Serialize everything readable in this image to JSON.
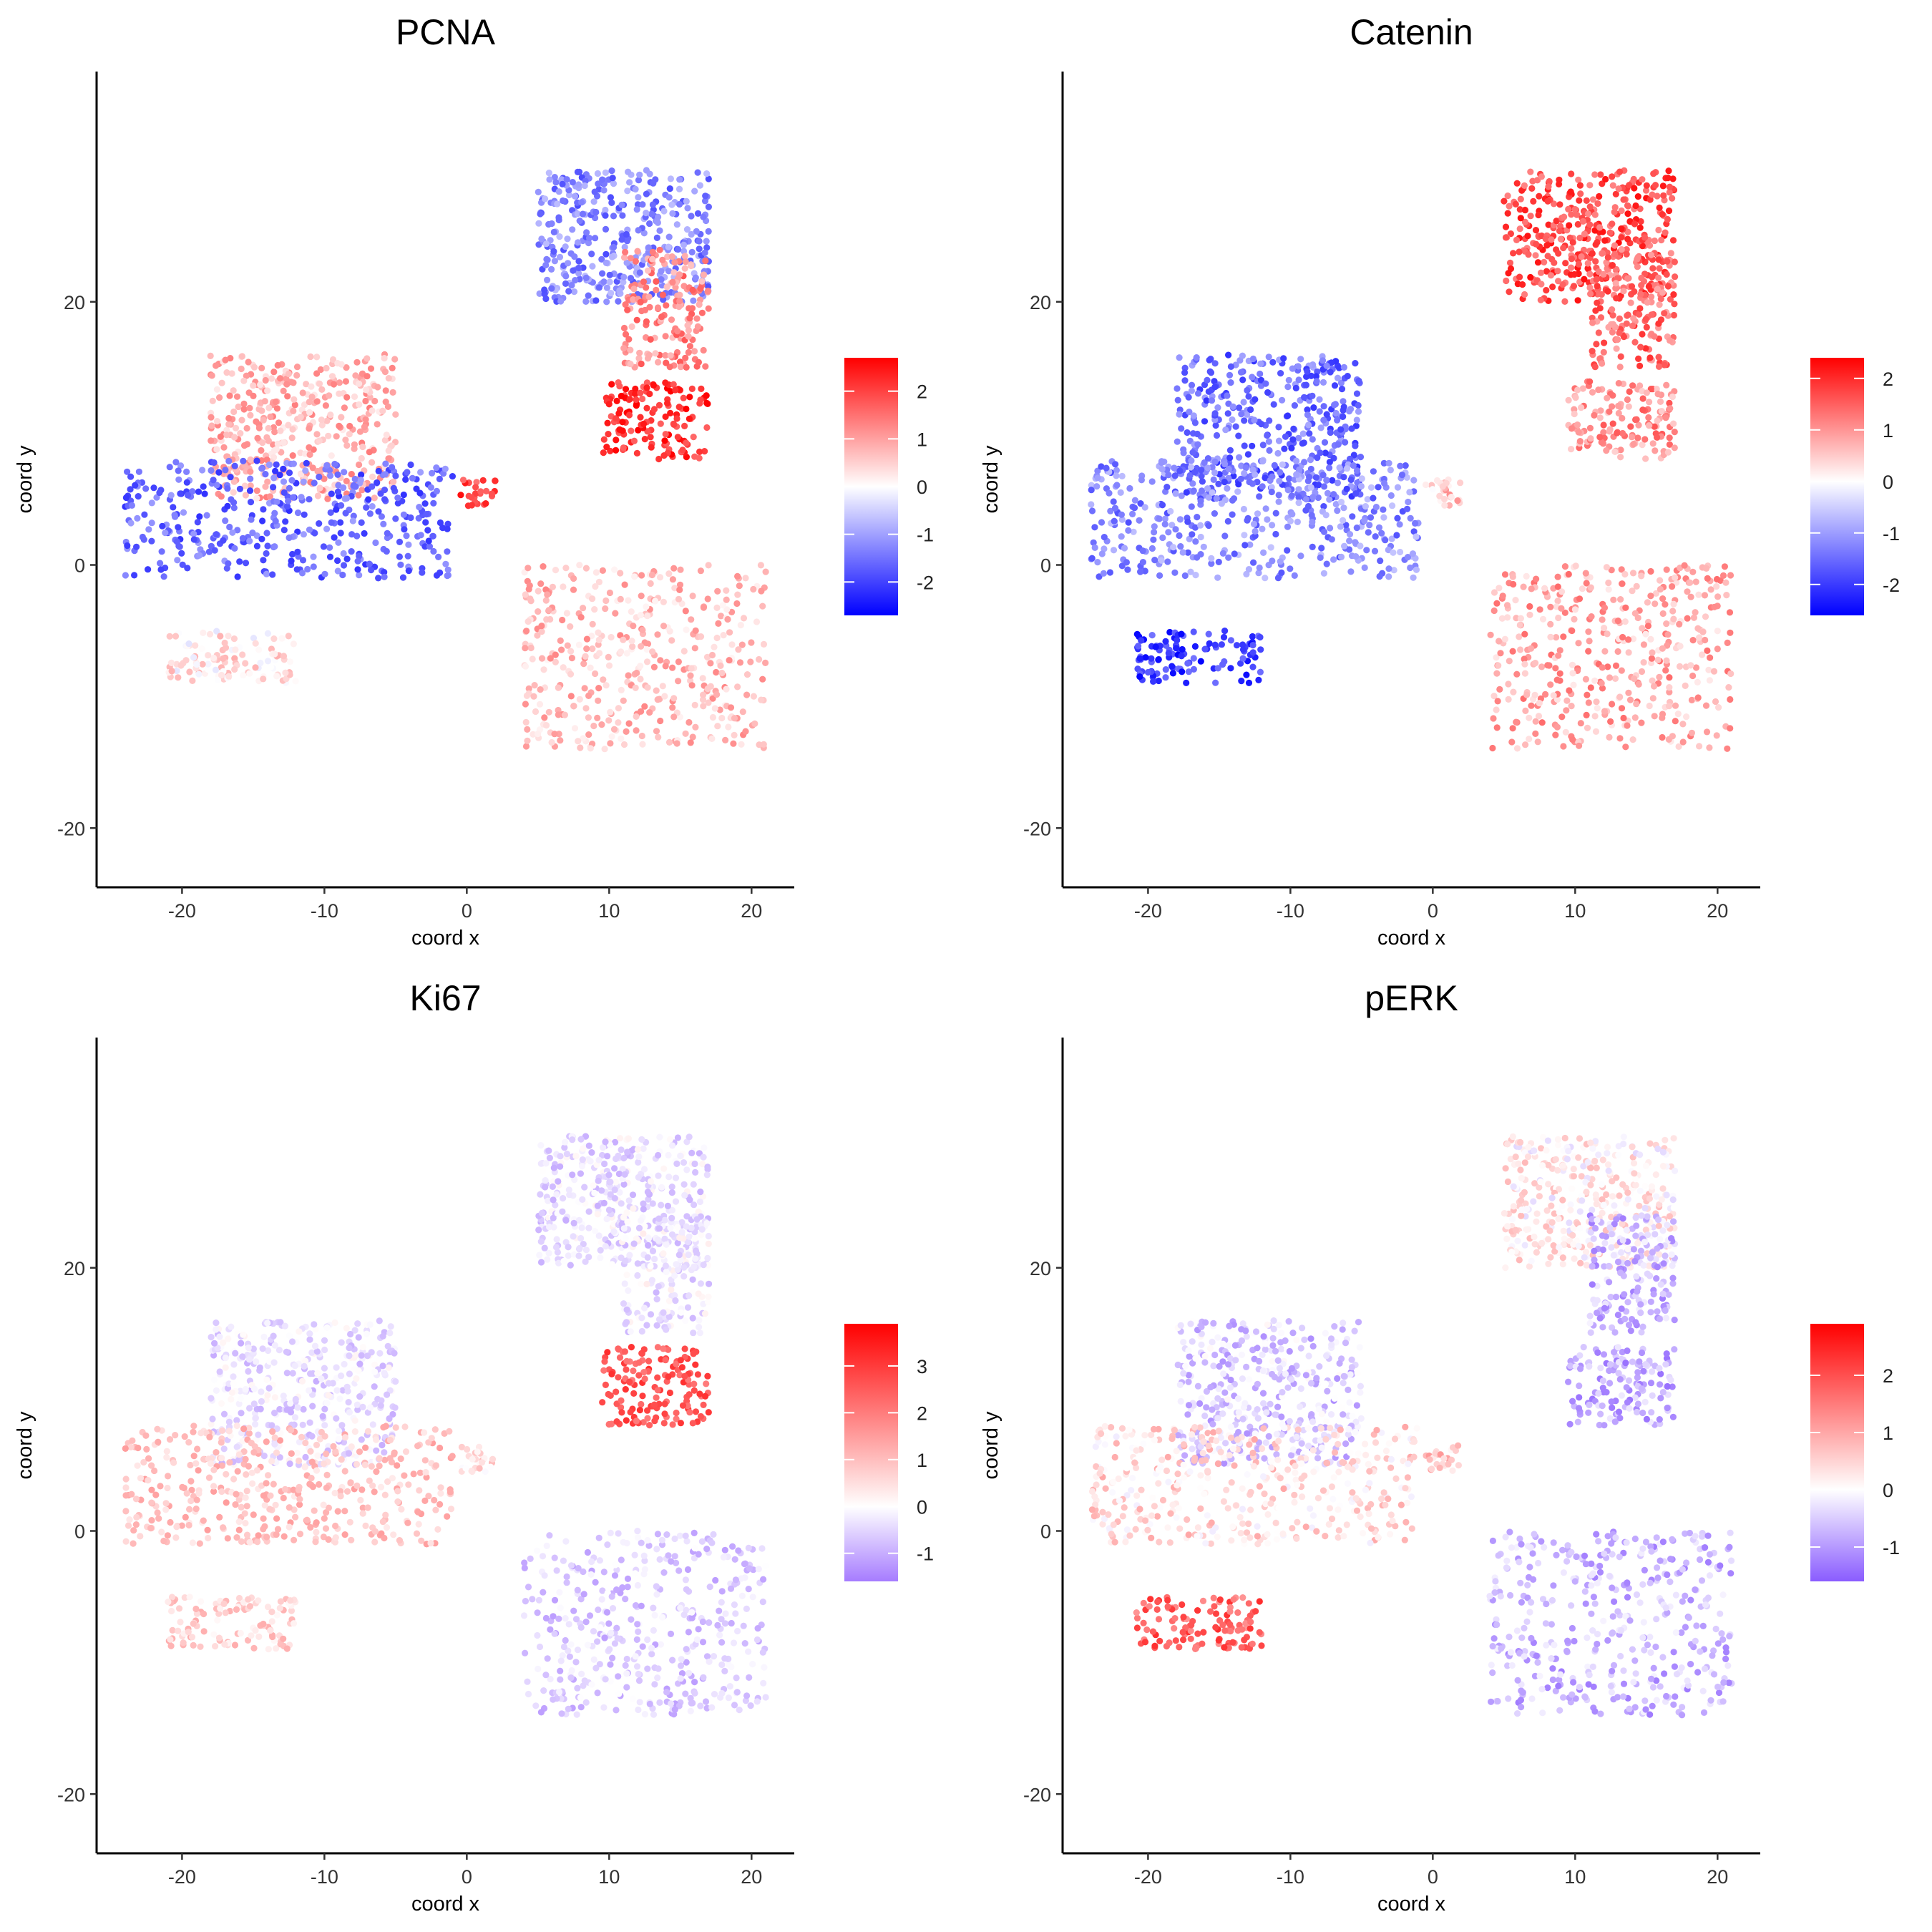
{
  "chart_data": [
    {
      "type": "scatter",
      "title": "PCNA",
      "xlabel": "coord x",
      "ylabel": "coord y",
      "xlim": [
        -26,
        23
      ],
      "ylim": [
        -24.5,
        37.5
      ],
      "xticks": [
        -20,
        -10,
        0,
        10,
        20
      ],
      "yticks": [
        -20,
        0,
        20
      ],
      "colorbar": {
        "min": -2.7,
        "max": 2.7,
        "ticks": [
          2,
          1,
          0,
          -1,
          -2
        ],
        "colors": [
          "#0000FF",
          "#FFFFFF",
          "#FF0000"
        ]
      },
      "grid": false,
      "legend": "right",
      "clusters": [
        {
          "region": "upper-right cluster, top lobe (purple-left / lavender)",
          "x_range": [
            5,
            17
          ],
          "y_range": [
            20,
            30
          ],
          "value": -1.3
        },
        {
          "region": "upper-right cluster, neck",
          "x_range": [
            11,
            17
          ],
          "y_range": [
            15,
            24
          ],
          "value": 1.2
        },
        {
          "region": "upper-right cluster, bottom lobe",
          "x_range": [
            9.5,
            17
          ],
          "y_range": [
            8,
            14
          ],
          "value": 2.2
        },
        {
          "region": "left cluster, upper part",
          "x_range": [
            -18,
            -5
          ],
          "y_range": [
            5,
            16
          ],
          "value": 0.8
        },
        {
          "region": "left cluster, lower part",
          "x_range": [
            -24,
            -1
          ],
          "y_range": [
            -1,
            8
          ],
          "value": -1.6
        },
        {
          "region": "small cluster near origin",
          "x_range": [
            -0.5,
            2
          ],
          "y_range": [
            4.5,
            6.5
          ],
          "value": 2.0
        },
        {
          "region": "lower-left curved arm",
          "x_range": [
            -21,
            -12
          ],
          "y_range": [
            -9,
            -5
          ],
          "value": 0.3
        },
        {
          "region": "lower-right sparse points",
          "x_range": [
            4,
            21
          ],
          "y_range": [
            -14,
            0
          ],
          "value": 0.7
        }
      ]
    },
    {
      "type": "scatter",
      "title": "Catenin",
      "xlabel": "coord x",
      "ylabel": "coord y",
      "xlim": [
        -26,
        23
      ],
      "ylim": [
        -24.5,
        37.5
      ],
      "xticks": [
        -20,
        -10,
        0,
        10,
        20
      ],
      "yticks": [
        -20,
        0,
        20
      ],
      "colorbar": {
        "min": -2.6,
        "max": 2.4,
        "ticks": [
          2,
          1,
          0,
          -1,
          -2
        ],
        "colors": [
          "#0000FF",
          "#FFFFFF",
          "#FF0000"
        ]
      },
      "grid": false,
      "legend": "right",
      "clusters": [
        {
          "region": "upper-right cluster, top lobe",
          "x_range": [
            5,
            17
          ],
          "y_range": [
            20,
            30
          ],
          "value": 1.7
        },
        {
          "region": "upper-right cluster, neck",
          "x_range": [
            11,
            17
          ],
          "y_range": [
            15,
            24
          ],
          "value": 1.4
        },
        {
          "region": "upper-right cluster, bottom lobe",
          "x_range": [
            9.5,
            17
          ],
          "y_range": [
            8,
            14
          ],
          "value": 1.0
        },
        {
          "region": "left cluster, upper part",
          "x_range": [
            -18,
            -5
          ],
          "y_range": [
            5,
            16
          ],
          "value": -1.5
        },
        {
          "region": "left cluster, lower part",
          "x_range": [
            -24,
            -1
          ],
          "y_range": [
            -1,
            8
          ],
          "value": -1.2
        },
        {
          "region": "small cluster near origin",
          "x_range": [
            -0.5,
            2
          ],
          "y_range": [
            4.5,
            6.5
          ],
          "value": 0.5
        },
        {
          "region": "lower-left curved arm",
          "x_range": [
            -21,
            -12
          ],
          "y_range": [
            -9,
            -5
          ],
          "value": -2.0
        },
        {
          "region": "lower-right sparse points",
          "x_range": [
            4,
            21
          ],
          "y_range": [
            -14,
            0
          ],
          "value": 0.8
        }
      ]
    },
    {
      "type": "scatter",
      "title": "Ki67",
      "xlabel": "coord x",
      "ylabel": "coord y",
      "xlim": [
        -26,
        23
      ],
      "ylim": [
        -24.5,
        37.5
      ],
      "xticks": [
        -20,
        -10,
        0,
        10,
        20
      ],
      "yticks": [
        -20,
        0,
        20
      ],
      "colorbar": {
        "min": -1.6,
        "max": 3.9,
        "ticks": [
          3,
          2,
          1,
          0,
          -1
        ],
        "colors": [
          "#A67CFF",
          "#FFFFFF",
          "#FF0000"
        ]
      },
      "grid": false,
      "legend": "right",
      "clusters": [
        {
          "region": "upper-right cluster, top lobe",
          "x_range": [
            5,
            17
          ],
          "y_range": [
            20,
            30
          ],
          "value": -0.4
        },
        {
          "region": "upper-right cluster, neck",
          "x_range": [
            11,
            17
          ],
          "y_range": [
            15,
            24
          ],
          "value": -0.3
        },
        {
          "region": "upper-right cluster, bottom lobe",
          "x_range": [
            9.5,
            17
          ],
          "y_range": [
            8,
            14
          ],
          "value": 2.6
        },
        {
          "region": "left cluster, upper part",
          "x_range": [
            -18,
            -5
          ],
          "y_range": [
            5,
            16
          ],
          "value": -0.4
        },
        {
          "region": "left cluster, lower part",
          "x_range": [
            -24,
            -1
          ],
          "y_range": [
            -1,
            8
          ],
          "value": 0.9
        },
        {
          "region": "small cluster near origin",
          "x_range": [
            -0.5,
            2
          ],
          "y_range": [
            4.5,
            6.5
          ],
          "value": 0.5
        },
        {
          "region": "lower-left curved arm",
          "x_range": [
            -21,
            -12
          ],
          "y_range": [
            -9,
            -5
          ],
          "value": 0.7
        },
        {
          "region": "lower-right sparse points",
          "x_range": [
            4,
            21
          ],
          "y_range": [
            -14,
            0
          ],
          "value": -0.6
        }
      ]
    },
    {
      "type": "scatter",
      "title": "pERK",
      "xlabel": "coord x",
      "ylabel": "coord y",
      "xlim": [
        -26,
        23
      ],
      "ylim": [
        -24.5,
        37.5
      ],
      "xticks": [
        -20,
        -10,
        0,
        10,
        20
      ],
      "yticks": [
        -20,
        0,
        20
      ],
      "colorbar": {
        "min": -1.6,
        "max": 2.9,
        "ticks": [
          2,
          1,
          0,
          -1
        ],
        "colors": [
          "#8A5CFF",
          "#FFFFFF",
          "#FF0000"
        ]
      },
      "grid": false,
      "legend": "right",
      "clusters": [
        {
          "region": "upper-right cluster, top lobe",
          "x_range": [
            5,
            17
          ],
          "y_range": [
            20,
            30
          ],
          "value": 0.2
        },
        {
          "region": "upper-right cluster, neck",
          "x_range": [
            11,
            17
          ],
          "y_range": [
            15,
            24
          ],
          "value": -0.7
        },
        {
          "region": "upper-right cluster, bottom lobe",
          "x_range": [
            9.5,
            17
          ],
          "y_range": [
            8,
            14
          ],
          "value": -0.8
        },
        {
          "region": "left cluster, upper part",
          "x_range": [
            -18,
            -5
          ],
          "y_range": [
            5,
            16
          ],
          "value": -0.5
        },
        {
          "region": "left cluster, lower part",
          "x_range": [
            -24,
            -1
          ],
          "y_range": [
            -1,
            8
          ],
          "value": 0.4
        },
        {
          "region": "small cluster near origin",
          "x_range": [
            -0.5,
            2
          ],
          "y_range": [
            4.5,
            6.5
          ],
          "value": 0.6
        },
        {
          "region": "lower-left curved arm",
          "x_range": [
            -21,
            -12
          ],
          "y_range": [
            -9,
            -5
          ],
          "value": 1.8
        },
        {
          "region": "lower-right sparse points",
          "x_range": [
            4,
            21
          ],
          "y_range": [
            -14,
            0
          ],
          "value": -0.7
        }
      ]
    }
  ]
}
